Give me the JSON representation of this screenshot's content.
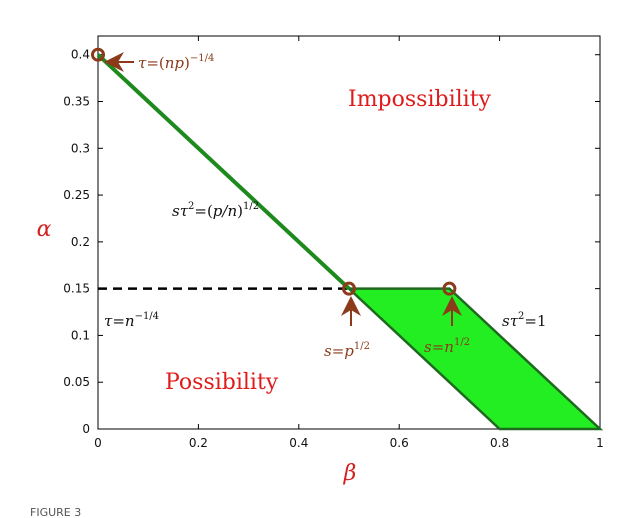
{
  "chart_data": {
    "type": "line",
    "xlabel": "β",
    "ylabel": "α",
    "xlim": [
      0,
      1
    ],
    "ylim": [
      0,
      0.42
    ],
    "x_ticks": [
      "0",
      "0.2",
      "0.4",
      "0.6",
      "0.8",
      "1"
    ],
    "y_ticks": [
      "0",
      "0.05",
      "0.1",
      "0.15",
      "0.2",
      "0.25",
      "0.3",
      "0.35",
      "0.4"
    ],
    "grid": false,
    "boundary_line": {
      "x": [
        0,
        0.5
      ],
      "y": [
        0.4,
        0.15
      ],
      "color": "#1e8a1e"
    },
    "dashed_line": {
      "x": [
        0,
        0.5
      ],
      "y": [
        0.15,
        0.15
      ],
      "color": "#000000"
    },
    "feasible_region": {
      "x": [
        0.5,
        0.7,
        1.0,
        0.8
      ],
      "y": [
        0.15,
        0.15,
        0.0,
        0.0
      ],
      "fill": "#22ee22",
      "edge": "#1e6a1e"
    },
    "points": [
      {
        "x": 0,
        "y": 0.4
      },
      {
        "x": 0.5,
        "y": 0.15
      },
      {
        "x": 0.7,
        "y": 0.15
      }
    ],
    "region_labels": {
      "impossibility": "Impossibility",
      "possibility": "Possibility"
    },
    "annotations": {
      "tau_np_a": "τ",
      "tau_np_b": "=(",
      "tau_np_c": "np",
      "tau_np_d": ")",
      "tau_np_exp": "−1/4",
      "s_tau_pn_a": "sτ",
      "s_tau_pn_exp2": "2",
      "s_tau_pn_b": "=(",
      "s_tau_pn_c": "p/n",
      "s_tau_pn_d": ")",
      "s_tau_pn_exp": "1/2",
      "tau_n_a": "τ",
      "tau_n_b": "=",
      "tau_n_c": "n",
      "tau_n_exp": "−1/4",
      "s_p_a": "s",
      "s_p_b": "=",
      "s_p_c": "p",
      "s_p_exp": "1/2",
      "s_n_a": "s",
      "s_n_b": "=",
      "s_n_c": "n",
      "s_n_exp": "1/2",
      "s_tau_one_a": "sτ",
      "s_tau_one_exp": "2",
      "s_tau_one_b": "=1"
    },
    "colors": {
      "point_marker": "#8b3a1a",
      "annotation_brown": "#8b3a1a",
      "annotation_black": "#111111",
      "axis_label": "#d42020"
    }
  },
  "figure_caption": "FIGURE 3"
}
